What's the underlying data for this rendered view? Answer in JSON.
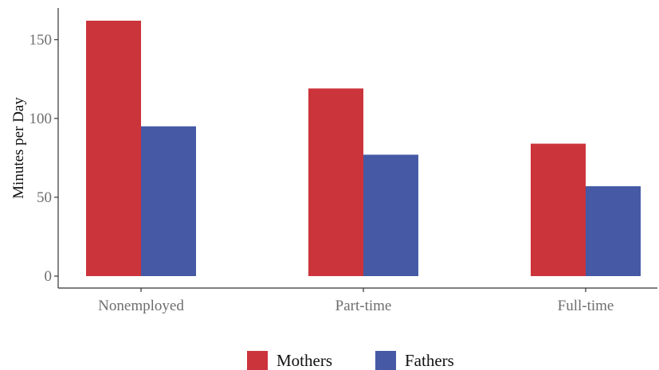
{
  "chart_data": {
    "type": "bar",
    "categories": [
      "Nonemployed",
      "Part-time",
      "Full-time"
    ],
    "series": [
      {
        "name": "Mothers",
        "values": [
          162,
          119,
          84
        ],
        "color": "#CC343B"
      },
      {
        "name": "Fathers",
        "values": [
          95,
          77,
          57
        ],
        "color": "#4559A5"
      }
    ],
    "title": "",
    "xlabel": "",
    "ylabel": "Minutes per Day",
    "ylim": [
      0,
      170
    ],
    "yticks": [
      0,
      50,
      100,
      150
    ],
    "grid": false,
    "legend_position": "bottom"
  }
}
